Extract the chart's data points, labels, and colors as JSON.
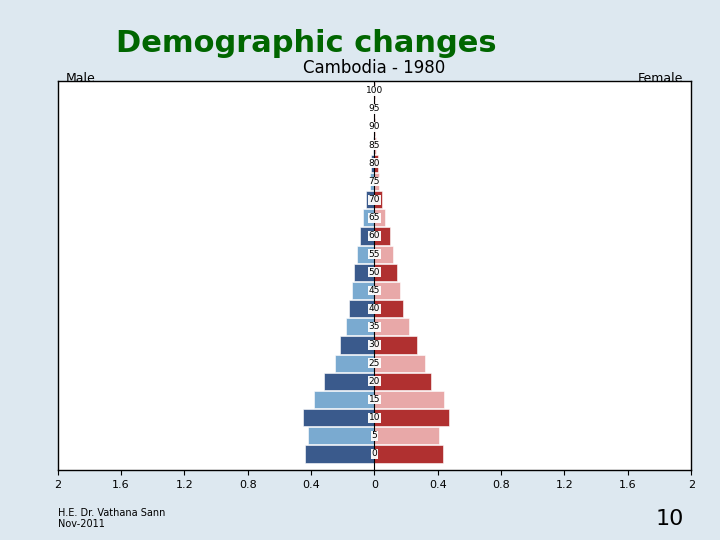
{
  "title": "Cambodia - 1980",
  "male_label": "Male",
  "female_label": "Female",
  "slide_title": "Demographic changes",
  "footer_line1": "H.E. Dr. Vathana Sann",
  "footer_line2": "Nov-2011",
  "slide_number": "10",
  "age_groups": [
    0,
    5,
    10,
    15,
    20,
    25,
    30,
    35,
    40,
    45,
    50,
    55,
    60,
    65,
    70,
    75,
    80,
    85,
    90,
    95,
    100
  ],
  "male_values": [
    0.44,
    0.42,
    0.45,
    0.38,
    0.32,
    0.25,
    0.22,
    0.18,
    0.16,
    0.14,
    0.13,
    0.11,
    0.09,
    0.07,
    0.05,
    0.03,
    0.02,
    0.01,
    0.005,
    0.002,
    0.001
  ],
  "female_values": [
    0.43,
    0.41,
    0.47,
    0.44,
    0.36,
    0.32,
    0.27,
    0.22,
    0.18,
    0.16,
    0.14,
    0.12,
    0.1,
    0.07,
    0.05,
    0.03,
    0.02,
    0.01,
    0.005,
    0.002,
    0.001
  ],
  "male_colors_dark": "#3a5a8c",
  "male_colors_light": "#7aaad0",
  "female_colors_dark": "#b03030",
  "female_colors_light": "#e8a8a8",
  "xlim": 2.0,
  "xtick_positions": [
    -2.0,
    -1.6,
    -1.2,
    -0.8,
    -0.4,
    0.0,
    0.4,
    0.8,
    1.2,
    1.6,
    2.0
  ],
  "xtick_labels": [
    "2",
    "1.6",
    "1.2",
    "0.8",
    "0.4",
    "0",
    "0.4",
    "0.8",
    "1.2",
    "1.6",
    "2"
  ],
  "title_color": "#006600",
  "background_color": "#dde8f0",
  "chart_bg": "#ffffff"
}
